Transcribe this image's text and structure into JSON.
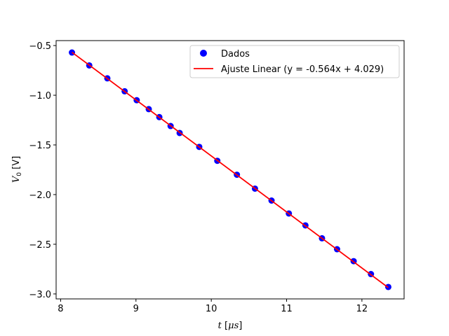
{
  "chart_data": {
    "type": "scatter",
    "xlabel": {
      "var": "t",
      "unit_prefix": " [",
      "unit_mu": "μ",
      "unit_s": "s",
      "unit_suffix": "]"
    },
    "ylabel": {
      "var": "V",
      "sub": "0",
      "unit": " [V]"
    },
    "xlim": [
      7.94,
      12.56
    ],
    "ylim": [
      -3.05,
      -0.45
    ],
    "xticks": [
      8,
      9,
      10,
      11,
      12
    ],
    "xtick_labels": [
      "8",
      "9",
      "10",
      "11",
      "12"
    ],
    "yticks": [
      -0.5,
      -1.0,
      -1.5,
      -2.0,
      -2.5,
      -3.0
    ],
    "ytick_labels": [
      "−0.5",
      "−1.0",
      "−1.5",
      "−2.0",
      "−2.5",
      "−3.0"
    ],
    "grid": false,
    "legend_position": "top-right",
    "series": [
      {
        "name": "Dados",
        "kind": "scatter",
        "color": "#0000ff",
        "x": [
          8.15,
          8.38,
          8.62,
          8.85,
          9.01,
          9.17,
          9.31,
          9.46,
          9.58,
          9.84,
          10.08,
          10.34,
          10.58,
          10.8,
          11.03,
          11.25,
          11.47,
          11.67,
          11.89,
          12.12,
          12.35
        ],
        "y": [
          -0.57,
          -0.7,
          -0.83,
          -0.96,
          -1.05,
          -1.14,
          -1.22,
          -1.31,
          -1.38,
          -1.52,
          -1.66,
          -1.8,
          -1.94,
          -2.06,
          -2.19,
          -2.31,
          -2.44,
          -2.55,
          -2.67,
          -2.8,
          -2.93
        ]
      },
      {
        "name": "Ajuste Linear (y = -0.564x + 4.029)",
        "kind": "line",
        "color": "#ff0000",
        "slope": -0.564,
        "intercept": 4.029,
        "x_range": [
          8.15,
          12.35
        ]
      }
    ]
  }
}
